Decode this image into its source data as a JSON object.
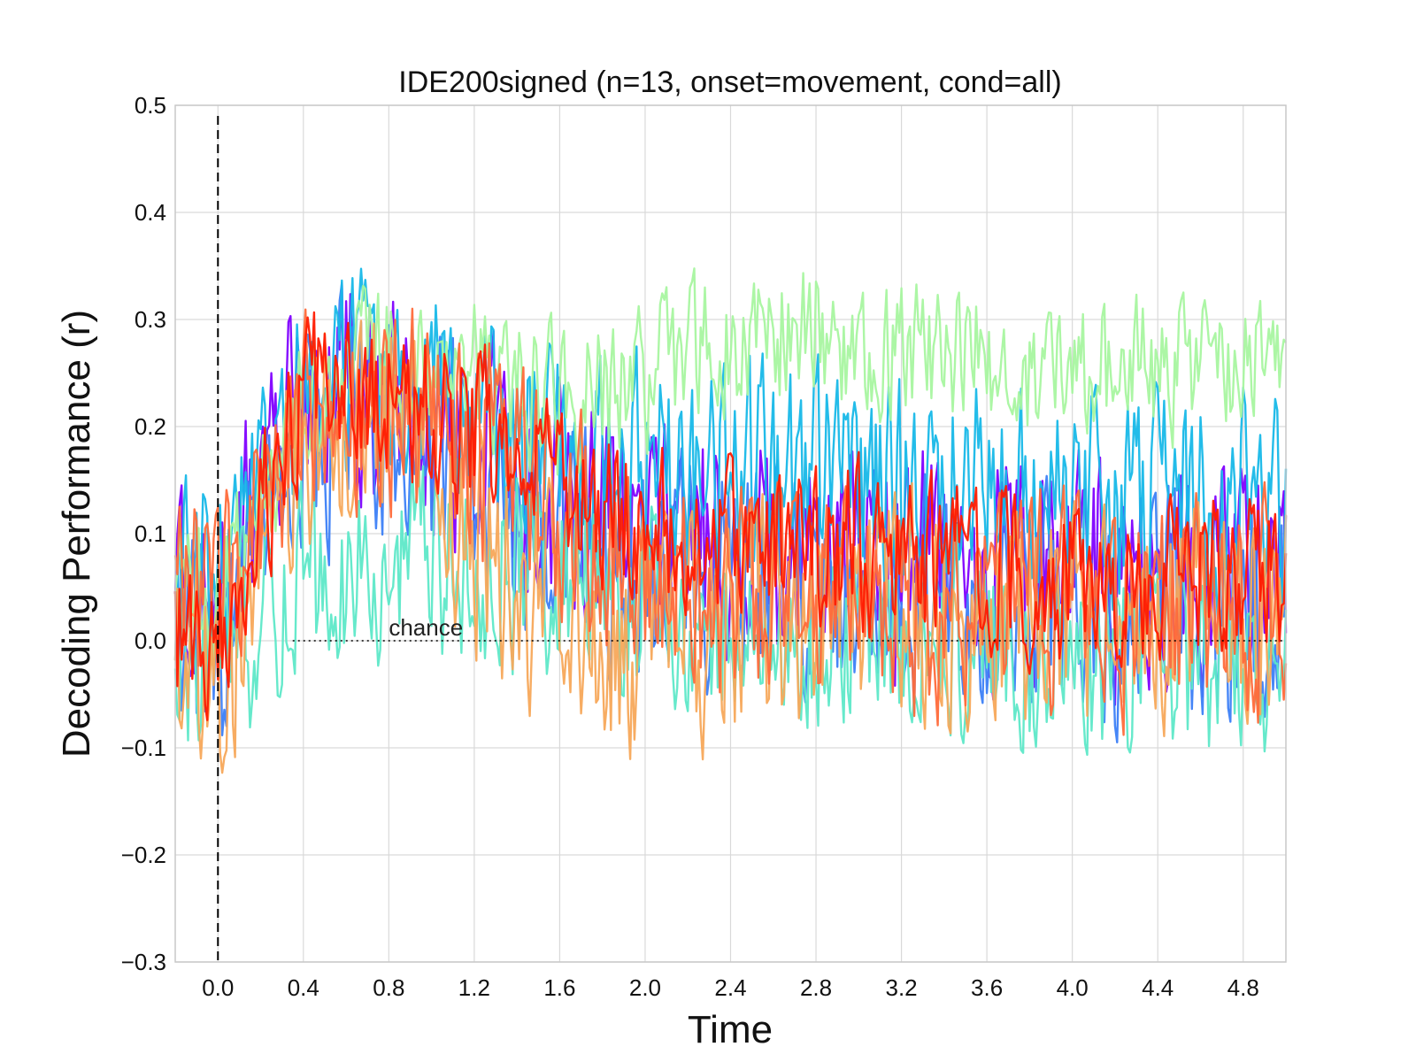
{
  "chart_data": {
    "type": "line",
    "title": "IDE200signed (n=13, onset=movement, cond=all)",
    "xlabel": "Time",
    "ylabel": "Decoding Performance (r)",
    "xlim": [
      -0.2,
      5.0
    ],
    "ylim": [
      -0.3,
      0.5
    ],
    "xticks": [
      "0.0",
      "0.4",
      "0.8",
      "1.2",
      "1.6",
      "2.0",
      "2.4",
      "2.8",
      "3.2",
      "3.6",
      "4.0",
      "4.4",
      "4.8"
    ],
    "yticks": [
      "−0.3",
      "−0.2",
      "−0.1",
      "0.0",
      "0.1",
      "0.2",
      "0.3",
      "0.4",
      "0.5"
    ],
    "grid": true,
    "onset_line": {
      "x": 0.0,
      "style": "dashed",
      "color": "#000000"
    },
    "chance_line": {
      "y": 0.0,
      "style": "dotted",
      "color": "#000000",
      "label": "chance",
      "label_x": 0.8
    },
    "colormap": "rainbow",
    "series": [
      {
        "color": "#7f00ff",
        "x": [
          -0.2,
          0.0,
          0.4,
          0.8,
          1.2,
          1.6,
          2.0,
          2.4,
          2.8,
          3.2,
          3.6,
          4.0,
          4.4,
          4.8,
          5.0
        ],
        "values": [
          0.1,
          0.05,
          0.25,
          0.22,
          0.18,
          0.12,
          0.1,
          0.09,
          0.08,
          0.08,
          0.07,
          0.07,
          0.06,
          0.06,
          0.06
        ],
        "noise": 0.07
      },
      {
        "color": "#3c80f7",
        "x": [
          -0.2,
          0.0,
          0.4,
          0.8,
          1.2,
          1.6,
          2.0,
          2.4,
          2.8,
          3.2,
          3.6,
          4.0,
          4.4,
          4.8,
          5.0
        ],
        "values": [
          0.02,
          -0.02,
          0.2,
          0.2,
          0.15,
          0.1,
          0.07,
          0.06,
          0.05,
          0.04,
          0.04,
          0.03,
          0.03,
          0.03,
          0.03
        ],
        "noise": 0.07
      },
      {
        "color": "#17b8e8",
        "x": [
          -0.2,
          0.0,
          0.4,
          0.8,
          1.2,
          1.6,
          2.0,
          2.4,
          2.8,
          3.2,
          3.6,
          4.0,
          4.4,
          4.8,
          5.0
        ],
        "values": [
          0.05,
          0.05,
          0.25,
          0.25,
          0.22,
          0.17,
          0.16,
          0.16,
          0.15,
          0.15,
          0.14,
          0.13,
          0.13,
          0.13,
          0.13
        ],
        "noise": 0.065
      },
      {
        "color": "#5ee8c8",
        "x": [
          -0.2,
          0.0,
          0.4,
          0.8,
          1.2,
          1.6,
          2.0,
          2.4,
          2.8,
          3.2,
          3.6,
          4.0,
          4.4,
          4.8,
          5.0
        ],
        "values": [
          -0.02,
          -0.02,
          0.05,
          0.08,
          0.07,
          0.06,
          0.04,
          0.02,
          0.01,
          0.0,
          0.0,
          -0.02,
          -0.02,
          -0.02,
          -0.02
        ],
        "noise": 0.06
      },
      {
        "color": "#a8f5a0",
        "x": [
          -0.2,
          0.0,
          0.4,
          0.8,
          1.2,
          1.6,
          2.0,
          2.4,
          2.8,
          3.2,
          3.6,
          4.0,
          4.4,
          4.8,
          5.0
        ],
        "values": [
          0.05,
          0.05,
          0.22,
          0.27,
          0.25,
          0.22,
          0.25,
          0.28,
          0.3,
          0.27,
          0.26,
          0.25,
          0.25,
          0.27,
          0.27
        ],
        "noise": 0.045
      },
      {
        "color": "#f7a85a",
        "x": [
          -0.2,
          0.0,
          0.4,
          0.8,
          1.2,
          1.6,
          2.0,
          2.4,
          2.8,
          3.2,
          3.6,
          4.0,
          4.4,
          4.8,
          5.0
        ],
        "values": [
          0.0,
          -0.05,
          0.2,
          0.22,
          0.1,
          0.02,
          0.0,
          0.02,
          0.02,
          0.03,
          0.03,
          0.02,
          0.02,
          0.03,
          0.03
        ],
        "noise": 0.07
      },
      {
        "color": "#ff6a3a",
        "x": [
          -0.2,
          0.0,
          0.4,
          0.8,
          1.2,
          1.6,
          2.0,
          2.4,
          2.8,
          3.2,
          3.6,
          4.0,
          4.4,
          4.8,
          5.0
        ],
        "values": [
          0.03,
          0.02,
          0.22,
          0.22,
          0.18,
          0.12,
          0.06,
          0.04,
          0.03,
          0.03,
          0.04,
          0.03,
          0.03,
          0.03,
          0.03
        ],
        "noise": 0.065
      },
      {
        "color": "#ff1a00",
        "x": [
          -0.2,
          0.0,
          0.4,
          0.8,
          1.2,
          1.6,
          2.0,
          2.4,
          2.8,
          3.2,
          3.6,
          4.0,
          4.4,
          4.8,
          5.0
        ],
        "values": [
          0.0,
          0.02,
          0.23,
          0.23,
          0.2,
          0.15,
          0.11,
          0.1,
          0.09,
          0.08,
          0.07,
          0.06,
          0.06,
          0.07,
          0.07
        ],
        "noise": 0.05
      }
    ]
  }
}
